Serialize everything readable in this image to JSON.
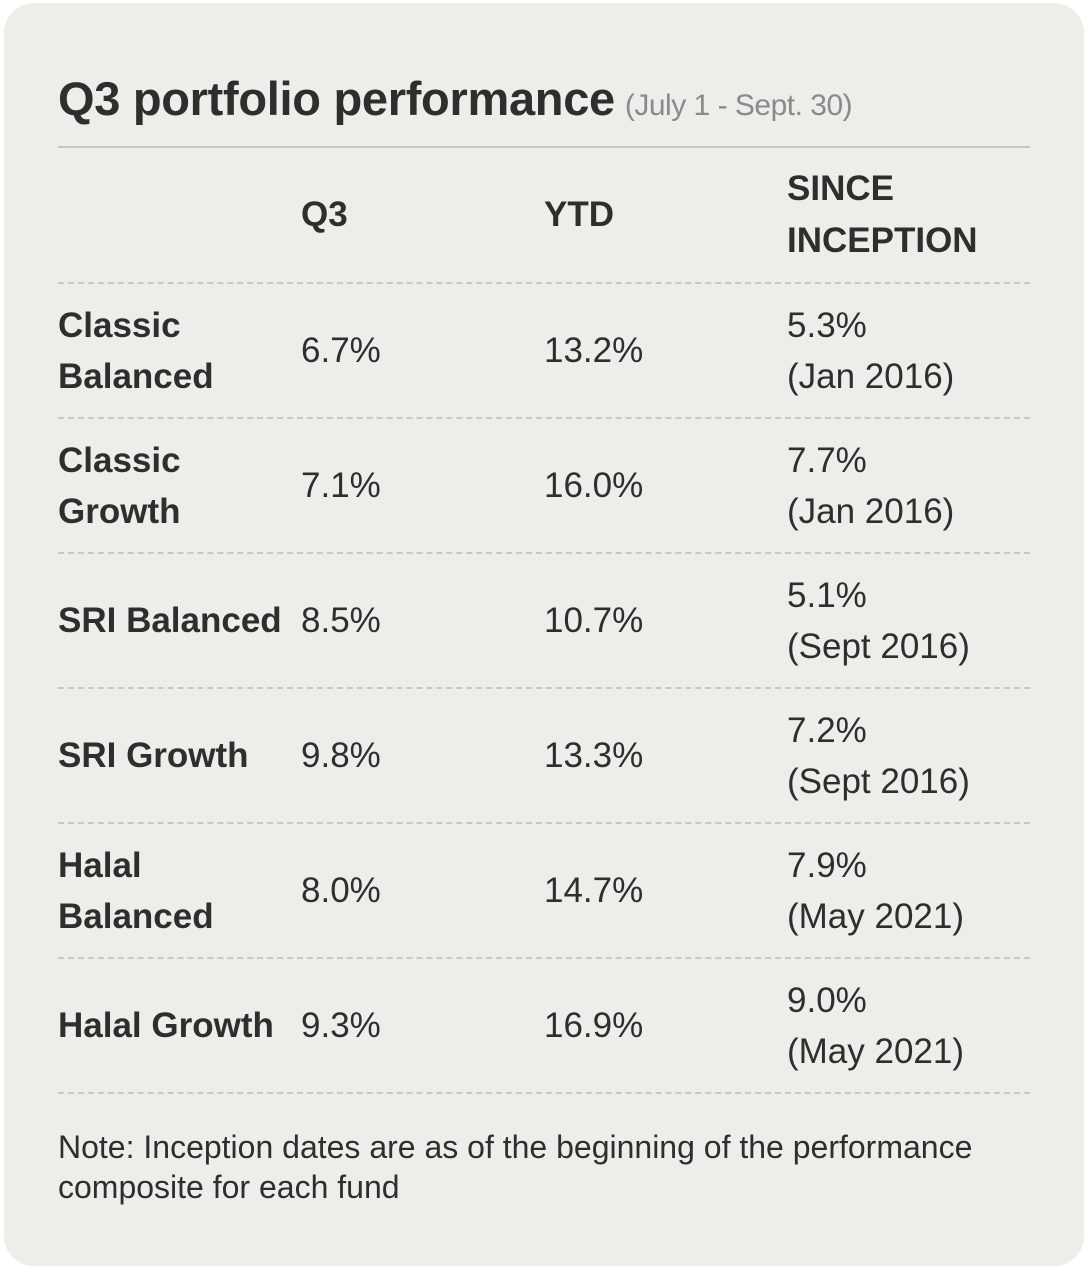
{
  "title": "Q3 portfolio performance",
  "subtitle": "(July 1 - Sept. 30)",
  "chart_data": {
    "type": "table",
    "columns": [
      "",
      "Q3",
      "YTD",
      "SINCE INCEPTION"
    ],
    "rows": [
      {
        "fund": "Classic Balanced",
        "q3": "6.7%",
        "ytd": "13.2%",
        "since_inception": "5.3%",
        "inception_date": "(Jan 2016)"
      },
      {
        "fund": "Classic Growth",
        "q3": "7.1%",
        "ytd": "16.0%",
        "since_inception": "7.7%",
        "inception_date": "(Jan 2016)"
      },
      {
        "fund": "SRI Balanced",
        "q3": "8.5%",
        "ytd": "10.7%",
        "since_inception": "5.1%",
        "inception_date": "(Sept 2016)"
      },
      {
        "fund": "SRI Growth",
        "q3": "9.8%",
        "ytd": "13.3%",
        "since_inception": "7.2%",
        "inception_date": "(Sept 2016)"
      },
      {
        "fund": "Halal Balanced",
        "q3": "8.0%",
        "ytd": "14.7%",
        "since_inception": "7.9%",
        "inception_date": "(May 2021)"
      },
      {
        "fund": "Halal Growth",
        "q3": "9.3%",
        "ytd": "16.9%",
        "since_inception": "9.0%",
        "inception_date": "(May 2021)"
      }
    ]
  },
  "note": "Note: Inception dates are as of the beginning of the performance composite for each fund"
}
